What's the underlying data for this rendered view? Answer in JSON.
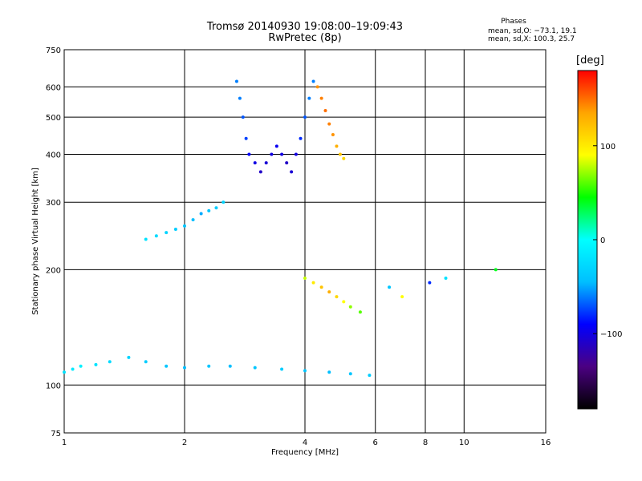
{
  "header": {
    "title_line1": "Tromsø 20140930 19:08:00–19:09:43",
    "title_line2": "RwPretec (8p)",
    "stats_title": "Phases",
    "stats_o": "mean, sd,O: −73.1, 19.1",
    "stats_x": "mean, sd,X: 100.3, 25.7"
  },
  "chart_data": {
    "type": "scatter",
    "xlabel": "Frequency [MHz]",
    "ylabel": "Stationary phase Virtual Height [km]",
    "x_scale": "log",
    "y_scale": "log",
    "xlim": [
      1,
      16
    ],
    "ylim": [
      75,
      750
    ],
    "x_ticks": [
      1,
      2,
      4,
      6,
      8,
      10,
      16
    ],
    "x_tick_labels": [
      "1",
      "2",
      "4",
      "6",
      "8",
      "10",
      "16"
    ],
    "y_ticks": [
      75,
      100,
      200,
      300,
      400,
      500,
      600,
      750
    ],
    "y_tick_labels": [
      "75",
      "100",
      "200",
      "300",
      "400",
      "500",
      "600",
      "750"
    ],
    "grid": true,
    "colorbar": {
      "label": "[deg]",
      "min": -180,
      "max": 180,
      "ticks": [
        100,
        0,
        -100
      ],
      "tick_labels": [
        "100",
        "0",
        "−100"
      ],
      "colormap": [
        "#000000",
        "#4b0082",
        "#0000ff",
        "#00bfff",
        "#00ffff",
        "#00ff00",
        "#ffff00",
        "#ffa500",
        "#ff0000"
      ]
    },
    "series": [
      {
        "x": [
          1.0,
          1.05,
          1.1,
          1.2,
          1.3,
          1.45,
          1.6,
          1.8,
          2.0,
          2.3,
          2.6,
          3.0,
          3.5,
          4.0,
          4.6,
          5.2,
          5.8
        ],
        "y": [
          108,
          110,
          112,
          113,
          115,
          118,
          115,
          112,
          111,
          112,
          112,
          111,
          110,
          109,
          108,
          107,
          106
        ],
        "phase": [
          -20,
          -15,
          -10,
          -20,
          -25,
          -30,
          -35,
          -40,
          -45,
          -40,
          -45,
          -40,
          -35,
          -40,
          -45,
          -40,
          -35
        ]
      },
      {
        "x": [
          2.7,
          2.75,
          2.8,
          2.85,
          2.9,
          3.0,
          3.1,
          3.2,
          3.3,
          3.4,
          3.5,
          3.6,
          3.7,
          3.8,
          3.9,
          4.0,
          4.1,
          4.2
        ],
        "y": [
          620,
          560,
          500,
          440,
          400,
          380,
          360,
          380,
          400,
          420,
          400,
          380,
          360,
          400,
          440,
          500,
          560,
          620
        ],
        "phase": [
          -60,
          -60,
          -70,
          -75,
          -90,
          -100,
          -110,
          -105,
          -100,
          -95,
          -100,
          -110,
          -105,
          -100,
          -80,
          -70,
          -60,
          -60
        ]
      },
      {
        "x": [
          4.3,
          4.4,
          4.5,
          4.6,
          4.7,
          4.8,
          4.9,
          5.0
        ],
        "y": [
          600,
          560,
          520,
          480,
          450,
          420,
          400,
          390
        ],
        "phase": [
          140,
          145,
          150,
          145,
          140,
          130,
          120,
          110
        ]
      },
      {
        "x": [
          1.6,
          1.7,
          1.8,
          1.9,
          2.0,
          2.1,
          2.2,
          2.3,
          2.4,
          2.5
        ],
        "y": [
          240,
          245,
          250,
          255,
          260,
          270,
          280,
          285,
          290,
          300
        ],
        "phase": [
          -20,
          -25,
          -30,
          -35,
          -40,
          -45,
          -50,
          -40,
          -35,
          -30
        ]
      },
      {
        "x": [
          4.0,
          4.2,
          4.4,
          4.6,
          4.8,
          5.0,
          5.2,
          5.5
        ],
        "y": [
          190,
          185,
          180,
          175,
          170,
          165,
          160,
          155
        ],
        "phase": [
          80,
          100,
          120,
          130,
          110,
          90,
          70,
          60
        ]
      },
      {
        "x": [
          6.5,
          7.0,
          8.2,
          9.0,
          12.0
        ],
        "y": [
          180,
          170,
          185,
          190,
          200
        ],
        "phase": [
          -40,
          90,
          -80,
          -20,
          40
        ]
      }
    ]
  }
}
